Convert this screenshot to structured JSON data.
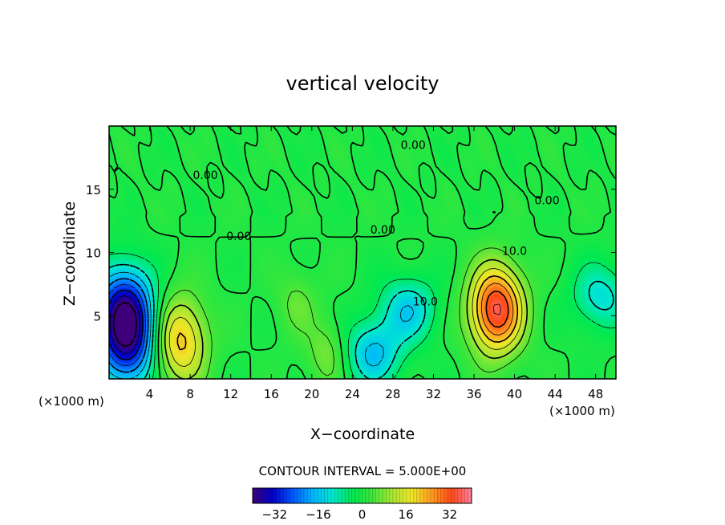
{
  "chart_data": {
    "type": "heatmap",
    "title": "vertical velocity",
    "xlabel": "X−coordinate",
    "ylabel": "Z−coordinate",
    "x_unit": "(×1000 m)",
    "y_unit": "(×1000 m)",
    "xlim": [
      0,
      50
    ],
    "ylim": [
      0,
      20
    ],
    "x_ticks": [
      4,
      8,
      12,
      16,
      20,
      24,
      28,
      32,
      36,
      40,
      44,
      48
    ],
    "x_tick_labels": [
      "4",
      "8",
      "12",
      "16",
      "20",
      "24",
      "28",
      "32",
      "36",
      "40",
      "44",
      "48"
    ],
    "y_ticks": [
      5,
      10,
      15
    ],
    "y_tick_labels": [
      "5",
      "10",
      "15"
    ],
    "contour_interval_text": "CONTOUR INTERVAL = 5.000E+00",
    "contour_interval": 5,
    "contour_labels": [
      {
        "text": "0.00",
        "x": 9.5,
        "y": 15.8
      },
      {
        "text": "0.00",
        "x": 12.8,
        "y": 11.0
      },
      {
        "text": "0.00",
        "x": 30.0,
        "y": 18.2
      },
      {
        "text": "0.00",
        "x": 43.2,
        "y": 13.8
      },
      {
        "text": "0.00",
        "x": 27.0,
        "y": 11.5
      },
      {
        "text": "10.0",
        "x": 40.0,
        "y": 9.8
      },
      {
        "text": "10.0",
        "x": 31.2,
        "y": 5.8
      }
    ],
    "features": [
      {
        "kind": "updraft",
        "x": 38.2,
        "z": 5.5,
        "peak": 36
      },
      {
        "kind": "updraft",
        "x": 7.0,
        "z": 3.0,
        "peak": 22
      },
      {
        "kind": "updraft",
        "x": 21.5,
        "z": 2.0,
        "peak": 8
      },
      {
        "kind": "updraft",
        "x": 18.5,
        "z": 6.0,
        "peak": 6
      },
      {
        "kind": "downdraft",
        "x": 1.5,
        "z": 5.5,
        "peak": -32
      },
      {
        "kind": "downdraft",
        "x": 1.8,
        "z": 2.5,
        "peak": -25
      },
      {
        "kind": "downdraft",
        "x": 29.5,
        "z": 5.5,
        "peak": -14
      },
      {
        "kind": "downdraft",
        "x": 26.0,
        "z": 2.0,
        "peak": -16
      },
      {
        "kind": "downdraft",
        "x": 48.5,
        "z": 6.5,
        "peak": -12
      }
    ],
    "colorbar": {
      "min": -40,
      "max": 40,
      "ticks": [
        -32,
        -16,
        0,
        16,
        32
      ],
      "tick_labels": [
        "−32",
        "−16",
        "0",
        "16",
        "32"
      ],
      "colors": [
        "#3d007a",
        "#0000c8",
        "#0055ff",
        "#00b4ff",
        "#00e8d0",
        "#00e850",
        "#3ee63a",
        "#a8e632",
        "#f0e628",
        "#ff9a20",
        "#ff4818",
        "#ff80a0"
      ]
    }
  }
}
